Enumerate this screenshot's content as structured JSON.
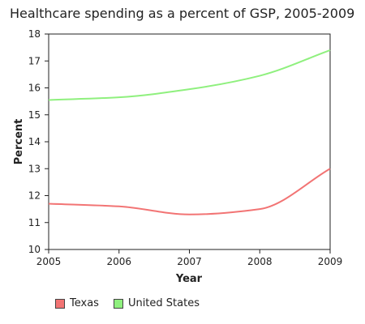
{
  "chart_data": {
    "type": "line",
    "title": "Healthcare spending as a percent of GSP, 2005-2009",
    "xlabel": "Year",
    "ylabel": "Percent",
    "x": [
      2005,
      2006,
      2007,
      2008,
      2009
    ],
    "xlim": [
      2005,
      2009
    ],
    "ylim": [
      10,
      18
    ],
    "x_ticks": [
      "2005",
      "2006",
      "2007",
      "2008",
      "2009"
    ],
    "y_ticks": [
      "10",
      "11",
      "12",
      "13",
      "14",
      "15",
      "16",
      "17",
      "18"
    ],
    "grid": false,
    "legend_position": "bottom-left",
    "series": [
      {
        "name": "Texas",
        "values": [
          11.7,
          11.6,
          11.3,
          11.5,
          13.0
        ],
        "color": "#f27474"
      },
      {
        "name": "United States",
        "values": [
          15.55,
          15.65,
          15.95,
          16.45,
          17.4
        ],
        "color": "#8ff07e"
      }
    ]
  }
}
